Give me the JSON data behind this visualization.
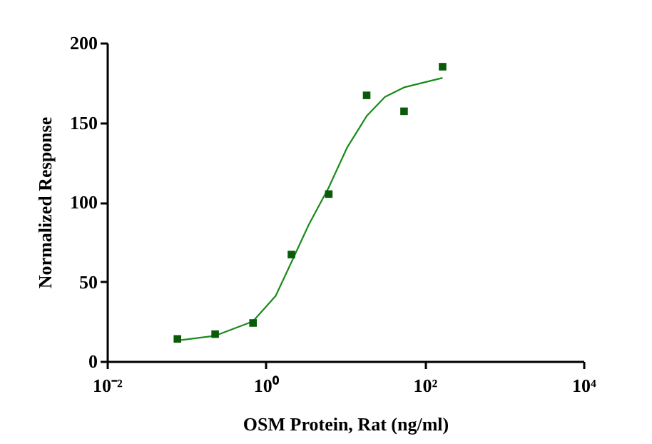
{
  "chart_data": {
    "type": "scatter",
    "xlabel": "OSM Protein, Rat  (ng/ml)",
    "ylabel": "Normalized Response",
    "log": "x",
    "grid": false,
    "xlim": [
      0.01,
      10000
    ],
    "xticks": [
      {
        "value": 0.01,
        "label": "10⁻²"
      },
      {
        "value": 1,
        "label": "10⁰"
      },
      {
        "value": 100,
        "label": "10²"
      },
      {
        "value": 10000,
        "label": "10⁴"
      }
    ],
    "ylim": [
      0,
      200
    ],
    "yticks": [
      0,
      50,
      100,
      150,
      200
    ],
    "series": [
      {
        "marker": "square",
        "color": "#0a5a0a",
        "x": [
          0.077,
          0.23,
          0.69,
          2.1,
          6.2,
          18.6,
          55,
          168
        ],
        "values": [
          14,
          17,
          24,
          67,
          105,
          167,
          157,
          185
        ]
      },
      {
        "type": "line",
        "marker": "none",
        "line_style": "solid",
        "color": "#1a8a1a",
        "x": [
          0.077,
          0.231,
          0.687,
          1.33,
          2.09,
          3.49,
          6.17,
          10.5,
          18.6,
          31.6,
          55,
          168
        ],
        "values": [
          13,
          16,
          25,
          41,
          62,
          86,
          109,
          134,
          154,
          166,
          172,
          178
        ]
      }
    ]
  }
}
